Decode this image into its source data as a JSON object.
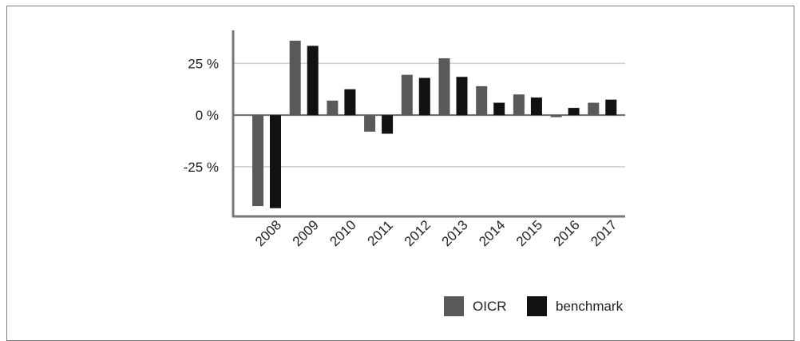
{
  "chart_data": {
    "type": "bar",
    "categories": [
      "2008",
      "2009",
      "2010",
      "2011",
      "2012",
      "2013",
      "2014",
      "2015",
      "2016",
      "2017"
    ],
    "series": [
      {
        "name": "OICR",
        "color": "#595959",
        "values": [
          -44,
          36,
          7,
          -8,
          19.5,
          27.5,
          14,
          10,
          -1,
          6
        ]
      },
      {
        "name": "benchmark",
        "color": "#111111",
        "values": [
          -45,
          33.5,
          12.5,
          -9,
          18,
          18.5,
          6,
          8.5,
          3.5,
          7.5
        ]
      }
    ],
    "ylim": [
      -49,
      41
    ],
    "yticks": [
      25,
      0,
      -25
    ],
    "ytick_labels": [
      "25 %",
      "0 %",
      "-25 %"
    ],
    "grid": true,
    "legend": "bottom-right",
    "title": "",
    "xlabel": "",
    "ylabel": ""
  }
}
